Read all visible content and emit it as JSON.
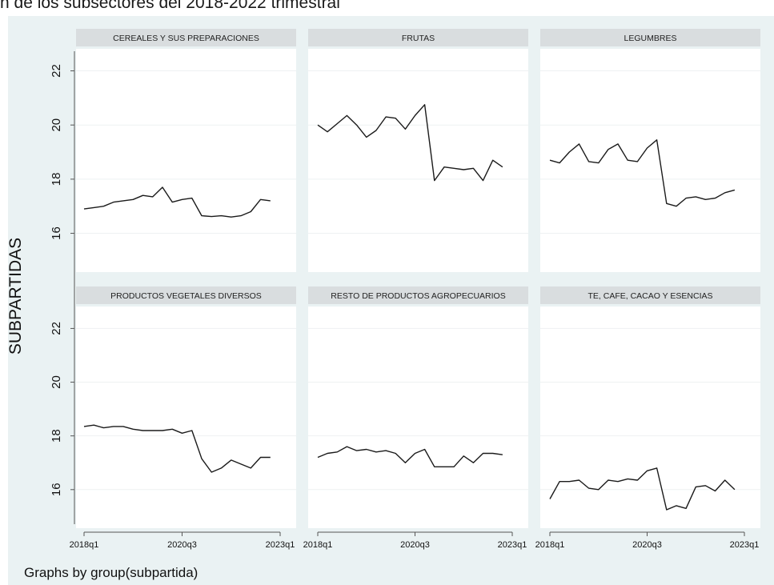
{
  "title": "n de los subsectores del 2018-2022 trimestral",
  "ylabel": "SUBPARTIDAS",
  "note": "Graphs by group(subpartida)",
  "colors": {
    "background": "#eaf2f3",
    "panel": "#ffffff",
    "header": "#d9dddf",
    "line": "#1a1a1a",
    "grid": "#eef1f2"
  },
  "chart_data": {
    "type": "line",
    "x": [
      "2018q1",
      "2018q2",
      "2018q3",
      "2018q4",
      "2019q1",
      "2019q2",
      "2019q3",
      "2019q4",
      "2020q1",
      "2020q2",
      "2020q3",
      "2020q4",
      "2021q1",
      "2021q2",
      "2021q3",
      "2021q4",
      "2022q1",
      "2022q2",
      "2022q3",
      "2022q4"
    ],
    "xticks": [
      "2018q1",
      "2020q3",
      "2023q1"
    ],
    "xlim": [
      "2018q1",
      "2023q1"
    ],
    "yticks": [
      16,
      18,
      20,
      22
    ],
    "ylim": [
      15.1,
      22.4
    ],
    "grid": true,
    "panels": [
      {
        "name": "CEREALES Y SUS PREPARACIONES",
        "values": [
          16.9,
          16.95,
          17.0,
          17.15,
          17.2,
          17.25,
          17.4,
          17.35,
          17.7,
          17.15,
          17.25,
          17.3,
          16.65,
          16.62,
          16.65,
          16.6,
          16.65,
          16.8,
          17.25,
          17.2
        ]
      },
      {
        "name": "FRUTAS",
        "values": [
          20.0,
          19.75,
          20.05,
          20.35,
          20.0,
          19.55,
          19.8,
          20.3,
          20.25,
          19.85,
          20.35,
          20.75,
          17.95,
          18.45,
          18.4,
          18.35,
          18.4,
          17.95,
          18.7,
          18.45
        ]
      },
      {
        "name": "LEGUMBRES",
        "values": [
          18.7,
          18.6,
          19.0,
          19.3,
          18.65,
          18.6,
          19.1,
          19.3,
          18.7,
          18.65,
          19.15,
          19.45,
          17.1,
          17.0,
          17.3,
          17.35,
          17.25,
          17.3,
          17.5,
          17.6
        ]
      },
      {
        "name": "PRODUCTOS VEGETALES DIVERSOS",
        "values": [
          18.35,
          18.4,
          18.3,
          18.35,
          18.35,
          18.25,
          18.2,
          18.2,
          18.2,
          18.25,
          18.1,
          18.2,
          17.15,
          16.65,
          16.8,
          17.1,
          16.95,
          16.8,
          17.2,
          17.2
        ]
      },
      {
        "name": "RESTO DE PRODUCTOS AGROPECUARIOS",
        "values": [
          17.2,
          17.35,
          17.4,
          17.6,
          17.45,
          17.5,
          17.4,
          17.45,
          17.35,
          17.0,
          17.35,
          17.5,
          16.85,
          16.85,
          16.85,
          17.25,
          17.0,
          17.35,
          17.35,
          17.3
        ]
      },
      {
        "name": "TE, CAFE, CACAO Y ESENCIAS",
        "values": [
          15.65,
          16.3,
          16.3,
          16.35,
          16.05,
          16.0,
          16.35,
          16.3,
          16.4,
          16.35,
          16.7,
          16.8,
          15.25,
          15.4,
          15.3,
          16.1,
          16.15,
          15.95,
          16.35,
          16.0
        ]
      }
    ]
  }
}
